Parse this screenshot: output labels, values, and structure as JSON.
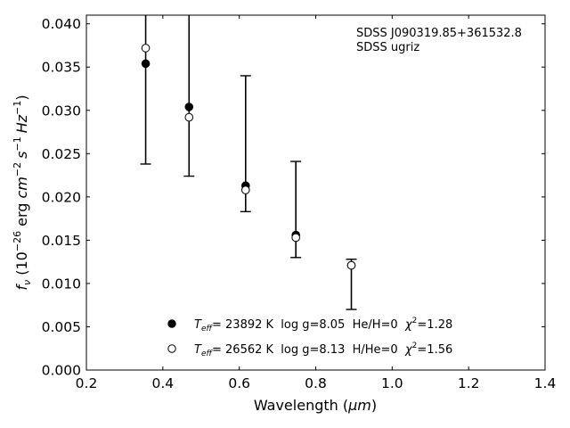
{
  "chart_data": {
    "type": "scatter",
    "x_ticks": [
      0.2,
      0.4,
      0.6,
      0.8,
      1.0,
      1.2,
      1.4
    ],
    "x_tick_labels": [
      "0.2",
      "0.4",
      "0.6",
      "0.8",
      "1.0",
      "1.2",
      "1.4"
    ],
    "y_ticks": [
      0.0,
      0.005,
      0.01,
      0.015,
      0.02,
      0.025,
      0.03,
      0.035,
      0.04
    ],
    "y_tick_labels": [
      "0.000",
      "0.005",
      "0.010",
      "0.015",
      "0.020",
      "0.025",
      "0.030",
      "0.035",
      "0.040"
    ],
    "xlim": [
      0.2,
      1.4
    ],
    "ylim": [
      0.0,
      0.041
    ],
    "xlabel": "Wavelength (μm)",
    "ylabel": "f_ν (10^-26 erg cm^-2 s^-1 Hz^-1)",
    "annotation": [
      "SDSS J090319.85+361532.8",
      "SDSS ugriz"
    ],
    "legend_position": "lower-center",
    "grid": false,
    "observed": {
      "x": [
        0.3551,
        0.4686,
        0.6166,
        0.748,
        0.8932
      ],
      "y": [
        0.0354,
        0.0304,
        0.0213,
        0.0156,
        0.0121
      ],
      "err_low": [
        0.0238,
        0.0224,
        0.0183,
        0.013,
        0.007
      ],
      "err_high": [
        0.042,
        0.042,
        0.034,
        0.0241,
        0.0128
      ]
    },
    "series": [
      {
        "name": "Teff= 23892 K log g=8.05 He/H=0 χ2=1.28",
        "marker": "filled",
        "x": [
          0.3551,
          0.4686,
          0.6166,
          0.748,
          0.8932
        ],
        "y": [
          0.0354,
          0.0304,
          0.0213,
          0.0156,
          0.0121
        ]
      },
      {
        "name": "Teff= 26562 K log g=8.13 H/He=0 χ2=1.56",
        "marker": "open",
        "x": [
          0.3551,
          0.4686,
          0.6166,
          0.748,
          0.8932
        ],
        "y": [
          0.0372,
          0.0292,
          0.0208,
          0.0153,
          0.0121
        ]
      }
    ],
    "legend": [
      {
        "marker": "filled",
        "T": "T",
        "eff": "eff",
        "text": "= 23892 K  log g=8.05  He/H=0  ",
        "chi": "χ",
        "two": "2",
        "tail": "=1.28"
      },
      {
        "marker": "open",
        "T": "T",
        "eff": "eff",
        "text": "= 26562 K  log g=8.13  H/He=0  ",
        "chi": "χ",
        "two": "2",
        "tail": "=1.56"
      }
    ],
    "colors": {
      "marker": "#000000",
      "open_fill": "#ffffff"
    },
    "ylabel_parts": {
      "f": "f",
      "nu": "ν",
      "p1": " (10",
      "e1": "−26",
      "p2": " erg ",
      "cm": "cm",
      "e2": "−2",
      "s": "s",
      "e3": "−1",
      "hz": "Hz",
      "e4": "−1",
      "close": ")"
    },
    "xlabel_parts": {
      "pre": "Wavelength (",
      "mu": "μm",
      "post": ")"
    }
  }
}
